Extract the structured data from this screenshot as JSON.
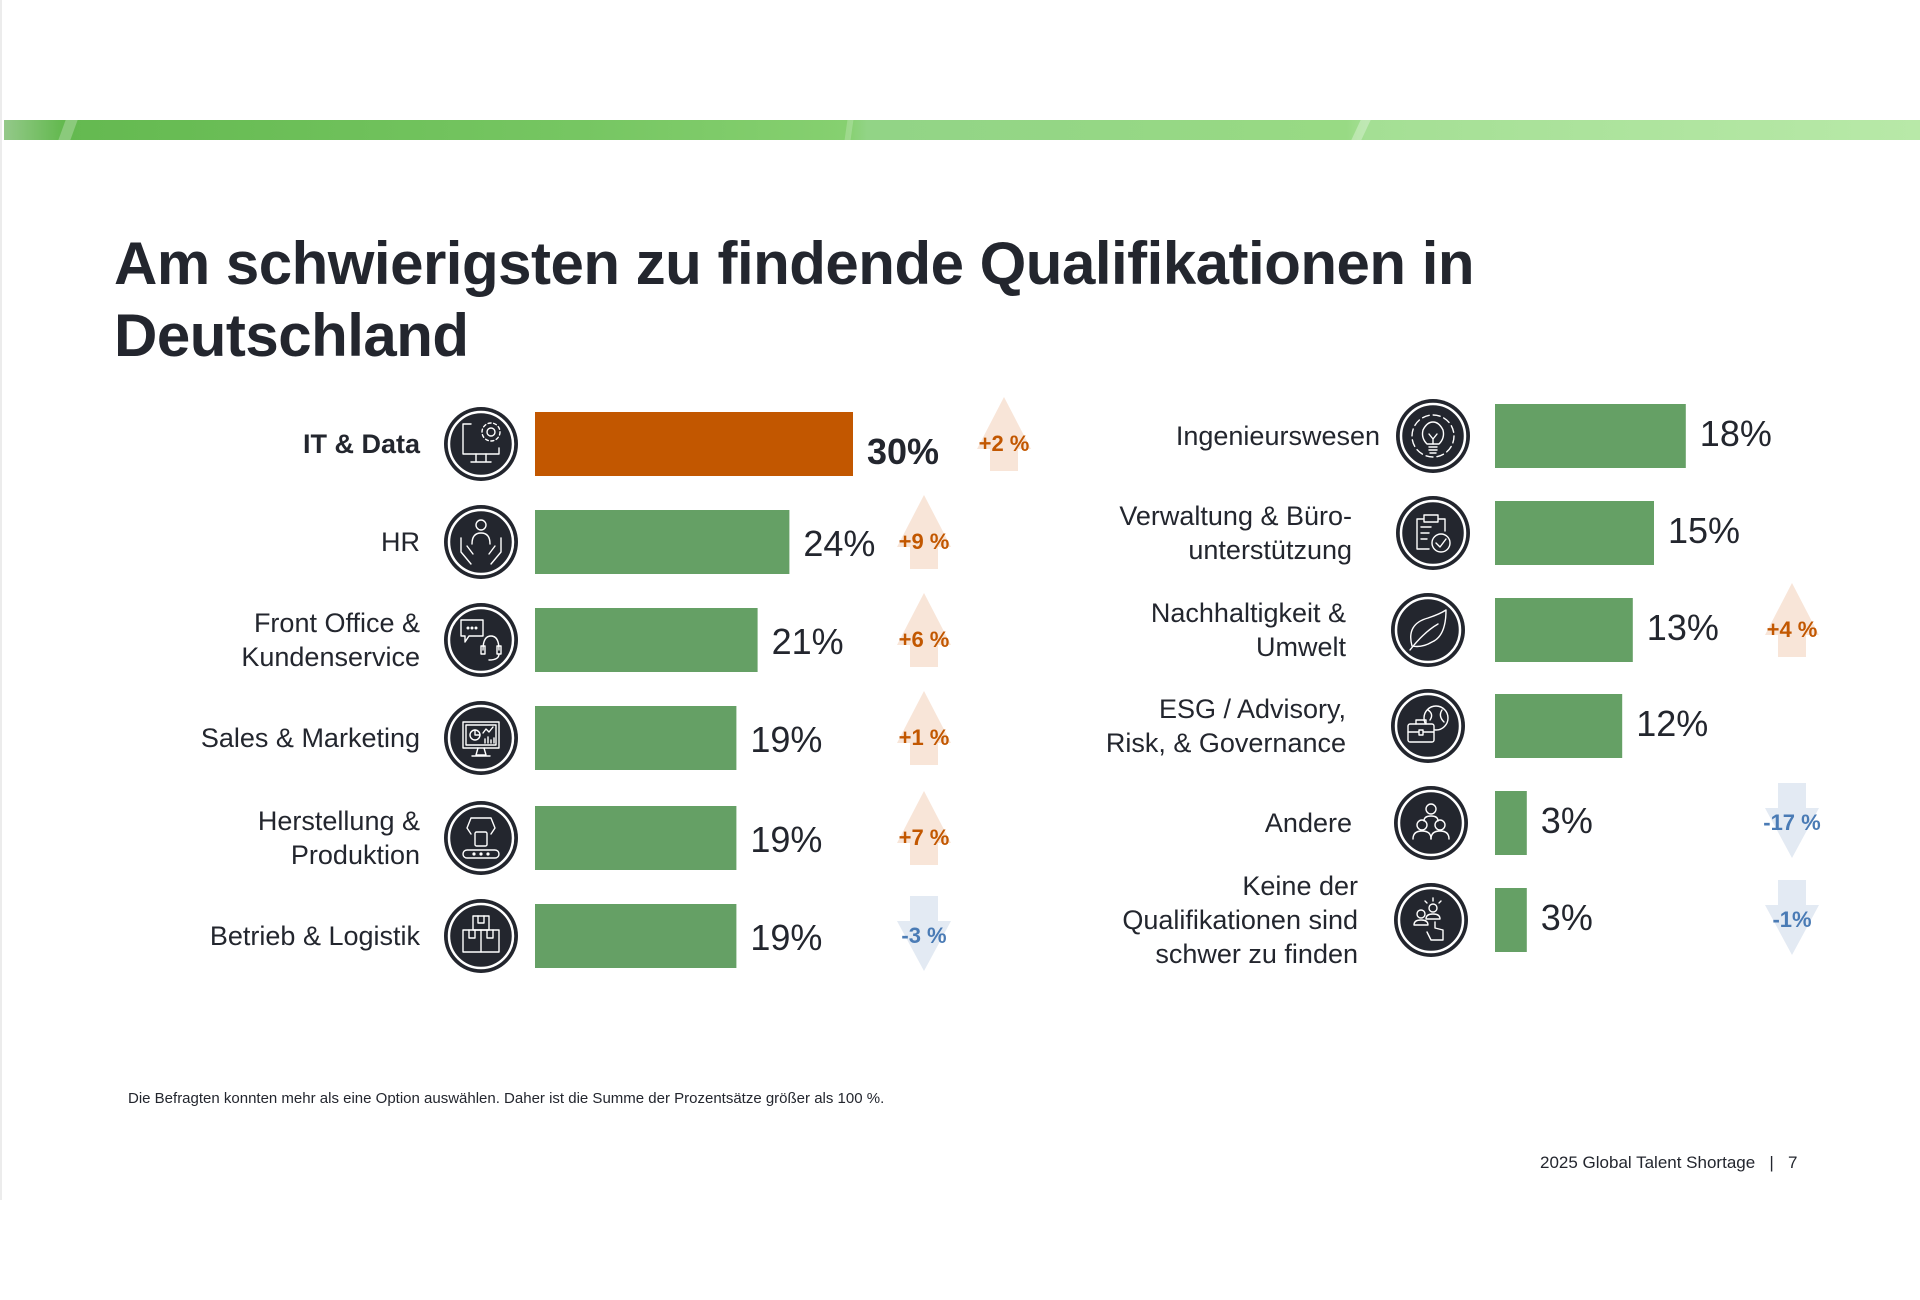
{
  "page": {
    "title": "Am schwierigsten zu findende Qualifikationen in Deutschland",
    "footnote": "Die Befragten konnten mehr als eine Option auswählen. Daher ist die Summe der Prozentsätze größer als 100 %.",
    "footer_report": "2025 Global Talent Shortage",
    "footer_separator": "|",
    "footer_page": "7"
  },
  "colors": {
    "bar_default": "#65a065",
    "bar_highlight": "#c25700",
    "up_arrow_fill": "#f8e5d8",
    "up_text": "#c25700",
    "down_arrow_fill": "#e3eaf3",
    "down_text": "#4a7bb5",
    "icon_circle": "#23262e"
  },
  "chart_data": {
    "type": "bar",
    "orientation": "horizontal",
    "title": "Am schwierigsten zu findende Qualifikationen in Deutschland",
    "unit": "%",
    "xlim": [
      0,
      30
    ],
    "grid": false,
    "legend": "none",
    "panels": [
      {
        "name": "left",
        "items": [
          {
            "label": [
              "IT & Data"
            ],
            "value": 30,
            "value_label": "30%",
            "change": "+2 %",
            "direction": "up",
            "highlight": true,
            "icon": "monitor-gear-icon"
          },
          {
            "label": [
              "HR"
            ],
            "value": 24,
            "value_label": "24%",
            "change": "+9 %",
            "direction": "up",
            "highlight": false,
            "icon": "person-hands-icon"
          },
          {
            "label": [
              "Front Office &",
              "Kundenservice"
            ],
            "value": 21,
            "value_label": "21%",
            "change": "+6 %",
            "direction": "up",
            "highlight": false,
            "icon": "chat-headset-icon"
          },
          {
            "label": [
              "Sales & Marketing"
            ],
            "value": 19,
            "value_label": "19%",
            "change": "+1 %",
            "direction": "up",
            "highlight": false,
            "icon": "monitor-chart-icon"
          },
          {
            "label": [
              "Herstellung &",
              "Produktion"
            ],
            "value": 19,
            "value_label": "19%",
            "change": "+7 %",
            "direction": "up",
            "highlight": false,
            "icon": "robot-arm-conveyor-icon"
          },
          {
            "label": [
              "Betrieb & Logistik"
            ],
            "value": 19,
            "value_label": "19%",
            "change": "-3 %",
            "direction": "down",
            "highlight": false,
            "icon": "boxes-icon"
          }
        ]
      },
      {
        "name": "right",
        "items": [
          {
            "label": [
              "Ingenieurswesen"
            ],
            "value": 18,
            "value_label": "18%",
            "change": null,
            "direction": null,
            "highlight": false,
            "icon": "gear-lightbulb-icon"
          },
          {
            "label": [
              "Verwaltung & Büro-",
              "unterstützung"
            ],
            "value": 15,
            "value_label": "15%",
            "change": null,
            "direction": null,
            "highlight": false,
            "icon": "clipboard-check-icon"
          },
          {
            "label": [
              "Nachhaltigkeit &",
              "Umwelt"
            ],
            "value": 13,
            "value_label": "13%",
            "change": "+4 %",
            "direction": "up",
            "highlight": false,
            "icon": "leaf-icon"
          },
          {
            "label": [
              "ESG / Advisory,",
              "Risk, & Governance"
            ],
            "value": 12,
            "value_label": "12%",
            "change": null,
            "direction": null,
            "highlight": false,
            "icon": "briefcase-globe-icon"
          },
          {
            "label": [
              "Andere"
            ],
            "value": 3,
            "value_label": "3%",
            "change": "-17 %",
            "direction": "down",
            "highlight": false,
            "icon": "people-group-icon"
          },
          {
            "label": [
              "Keine der",
              "Qualifikationen sind",
              "schwer zu finden"
            ],
            "value": 3,
            "value_label": "3%",
            "change": "-1%",
            "direction": "down",
            "highlight": false,
            "icon": "people-pointer-icon"
          }
        ]
      }
    ]
  }
}
